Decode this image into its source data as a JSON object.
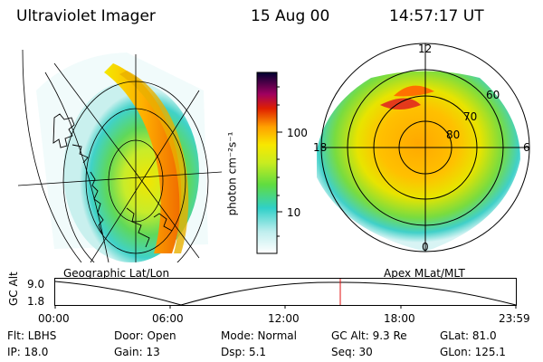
{
  "header": {
    "instrument": "Ultraviolet Imager",
    "date": "15 Aug 00",
    "time": "14:57:17 UT"
  },
  "colorbar": {
    "unit_label": "photon cm⁻²s⁻¹",
    "ticks": [
      "100",
      "10"
    ]
  },
  "polar_plot": {
    "mlt_labels": [
      "12",
      "18",
      "6",
      "0"
    ],
    "mlat_labels": [
      "60",
      "70",
      "80"
    ]
  },
  "panel_labels": {
    "left": "Geographic Lat/Lon",
    "right": "Apex MLat/MLT"
  },
  "altitude_strip": {
    "axis_label": "GC Alt",
    "y_ticks": [
      "9.0",
      "1.8"
    ],
    "x_ticks": [
      "00:00",
      "06:00",
      "12:00",
      "18:00",
      "23:59"
    ]
  },
  "info": {
    "flt": "Flt:  LBHS",
    "door": "Door:  Open",
    "mode": "Mode:  Normal",
    "gc_alt": "GC Alt:  9.3 Re",
    "glat": "GLat:  81.0",
    "ip": "IP:  18.0",
    "gain": "Gain:  13",
    "dsp": "Dsp:      5.1",
    "seq": "Seq:  30",
    "glon": "GLon:  125.1"
  },
  "colors": {
    "bright": "#e0001e",
    "orange": "#ff9a00",
    "yellow": "#f0e400",
    "green": "#8ee03a",
    "cyan": "#3cd8d0",
    "marker": "#e01010"
  }
}
